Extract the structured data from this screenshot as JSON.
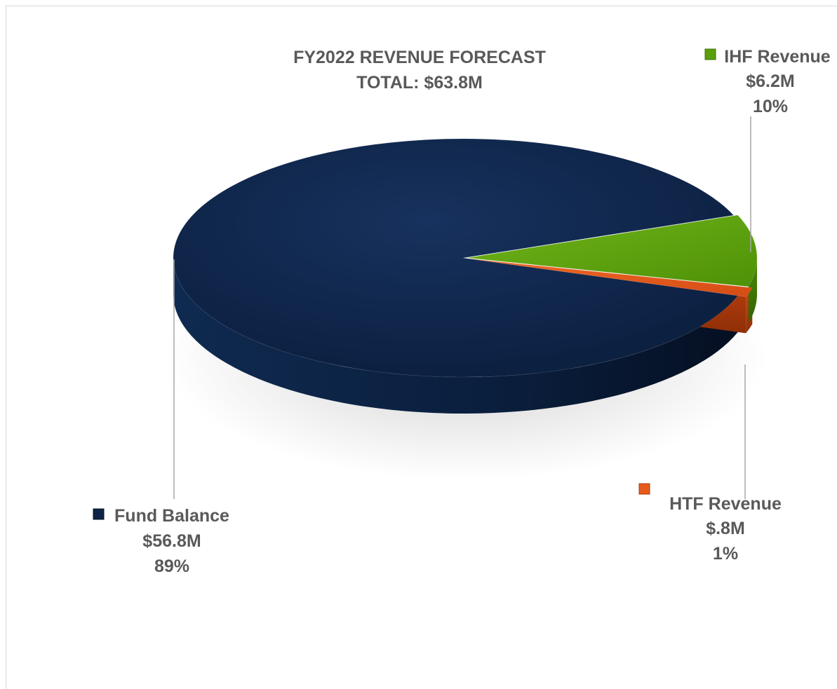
{
  "chart_data": {
    "type": "pie",
    "title": "FY2022 REVENUE FORECAST",
    "subtitle": "TOTAL: $63.8M",
    "slices": [
      {
        "name": "Fund Balance",
        "amount_label": "$56.8M",
        "percent_label": "89%",
        "value": 56.8,
        "color": "#0d2447"
      },
      {
        "name": "IHF Revenue",
        "amount_label": "$6.2M",
        "percent_label": "10%",
        "value": 6.2,
        "color": "#5aa00a"
      },
      {
        "name": "HTF Revenue",
        "amount_label": "$.8M",
        "percent_label": "1%",
        "value": 0.8,
        "color": "#e65a1c"
      }
    ],
    "style": "3d-exploded"
  }
}
